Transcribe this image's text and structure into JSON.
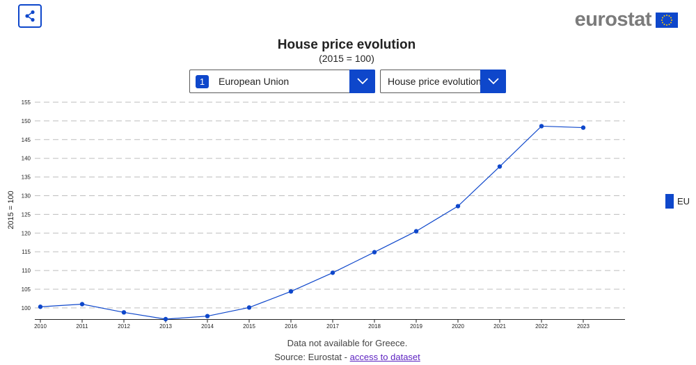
{
  "header": {
    "share_icon": "share-icon",
    "logo_text": "eurostat",
    "flag_icon": "eu-flag-icon"
  },
  "controls": {
    "geo_badge": "1",
    "geo_label": "European Union",
    "indicator_label": "House price evolution",
    "dropdown_icon": "chevron-down-icon"
  },
  "legend": {
    "label": "EU",
    "color": "#0e47cb"
  },
  "footer": {
    "note": "Data not available for Greece.",
    "source_prefix": "Source: Eurostat - ",
    "source_link": "access to dataset"
  },
  "chart_data": {
    "type": "line",
    "title": "House price evolution",
    "subtitle": "(2015 = 100)",
    "xlabel": "",
    "ylabel": "2015 = 100",
    "ylim": [
      97,
      155
    ],
    "yticks": [
      100,
      105,
      110,
      115,
      120,
      125,
      130,
      135,
      140,
      145,
      150,
      155
    ],
    "grid": true,
    "legend_position": "right",
    "categories": [
      "2010",
      "2011",
      "2012",
      "2013",
      "2014",
      "2015",
      "2016",
      "2017",
      "2018",
      "2019",
      "2020",
      "2021",
      "2022",
      "2023"
    ],
    "series": [
      {
        "name": "EU",
        "color": "#0e47cb",
        "values": [
          100.3,
          101.0,
          98.8,
          97.0,
          97.8,
          100.1,
          104.4,
          109.4,
          114.9,
          120.5,
          127.2,
          137.8,
          148.6,
          148.2
        ]
      }
    ]
  }
}
